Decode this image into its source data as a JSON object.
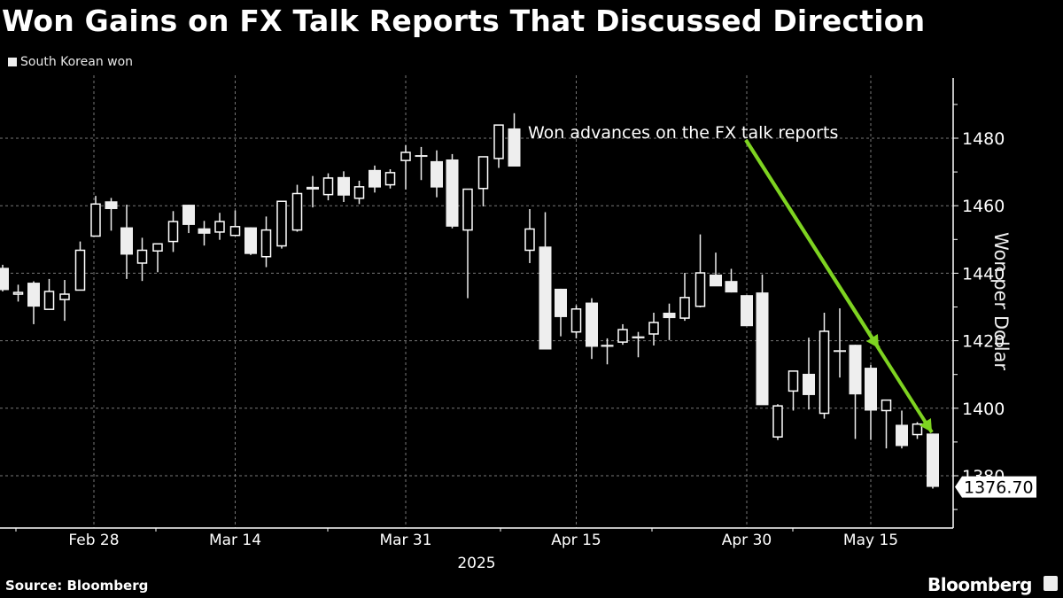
{
  "title": "Won Gains on FX Talk Reports That Discussed Direction",
  "legend": {
    "label": "South Korean won",
    "color": "#eeeeee"
  },
  "source": "Source: Bloomberg",
  "brand": "Bloomberg",
  "annotation": {
    "text": "Won advances on the FX talk reports",
    "arrow_color": "#7ed321"
  },
  "last_value_label": "1376.70",
  "chart_data": {
    "type": "candlestick",
    "title": "Won Gains on FX Talk Reports That Discussed Direction",
    "xlabel": "2025",
    "ylabel": "Won per Dollar",
    "ylim": [
      1365,
      1498
    ],
    "yticks": [
      1380,
      1400,
      1420,
      1440,
      1460,
      1480
    ],
    "xticks": [
      {
        "label": "Feb 28",
        "index": 6
      },
      {
        "label": "Mar 14",
        "index": 15
      },
      {
        "label": "Mar 31",
        "index": 26
      },
      {
        "label": "Apr 15",
        "index": 37
      },
      {
        "label": "Apr 30",
        "index": 48
      },
      {
        "label": "May 15",
        "index": 56
      }
    ],
    "legend": [
      "South Korean won"
    ],
    "grid": true,
    "last_value": 1376.7,
    "series": [
      {
        "name": "South Korean won",
        "ohlc": [
          [
            1441.6,
            1442.5,
            1434.6,
            1435.0
          ],
          [
            1433.8,
            1436.6,
            1431.6,
            1434.3
          ],
          [
            1437.2,
            1437.6,
            1424.9,
            1430.1
          ],
          [
            1429.3,
            1438.3,
            1429.3,
            1434.6
          ],
          [
            1432.2,
            1438.0,
            1425.9,
            1433.8
          ],
          [
            1435.0,
            1449.4,
            1435.0,
            1446.8
          ],
          [
            1451.0,
            1462.9,
            1451.0,
            1460.5
          ],
          [
            1461.3,
            1462.3,
            1452.6,
            1459.0
          ],
          [
            1453.6,
            1460.3,
            1438.3,
            1445.5
          ],
          [
            1443.0,
            1450.5,
            1437.7,
            1446.8
          ],
          [
            1446.6,
            1448.7,
            1440.3,
            1448.7
          ],
          [
            1449.4,
            1458.4,
            1446.3,
            1455.3
          ],
          [
            1460.3,
            1460.3,
            1451.9,
            1454.3
          ],
          [
            1453.3,
            1455.5,
            1448.2,
            1451.7
          ],
          [
            1452.2,
            1457.9,
            1449.9,
            1455.3
          ],
          [
            1451.2,
            1458.6,
            1451.2,
            1453.8
          ],
          [
            1453.6,
            1453.6,
            1445.4,
            1445.7
          ],
          [
            1444.9,
            1456.8,
            1441.8,
            1452.8
          ],
          [
            1448.1,
            1461.3,
            1447.3,
            1461.3
          ],
          [
            1452.8,
            1466.2,
            1452.3,
            1463.6
          ],
          [
            1465.6,
            1468.8,
            1459.5,
            1464.8
          ],
          [
            1463.3,
            1469.6,
            1461.6,
            1468.2
          ],
          [
            1468.5,
            1470.2,
            1461.1,
            1463.0
          ],
          [
            1462.2,
            1467.4,
            1460.5,
            1465.6
          ],
          [
            1470.6,
            1471.9,
            1463.9,
            1465.4
          ],
          [
            1466.2,
            1470.8,
            1465.1,
            1469.8
          ],
          [
            1473.4,
            1477.9,
            1464.8,
            1475.8
          ],
          [
            1475.0,
            1477.4,
            1467.6,
            1475.0
          ],
          [
            1473.2,
            1476.4,
            1462.5,
            1465.4
          ],
          [
            1473.7,
            1475.3,
            1453.3,
            1453.8
          ],
          [
            1452.8,
            1464.6,
            1432.6,
            1464.9
          ],
          [
            1465.1,
            1471.9,
            1459.8,
            1474.5
          ],
          [
            1474.0,
            1482.5,
            1471.2,
            1483.9
          ],
          [
            1482.9,
            1487.4,
            1471.9,
            1471.6
          ],
          [
            1446.8,
            1459.0,
            1443.0,
            1453.1
          ],
          [
            1447.9,
            1458.1,
            1418.2,
            1417.4
          ],
          [
            1435.4,
            1435.4,
            1421.3,
            1427.0
          ],
          [
            1422.6,
            1430.5,
            1420.7,
            1429.4
          ],
          [
            1431.3,
            1432.6,
            1414.6,
            1418.2
          ],
          [
            1418.8,
            1420.7,
            1413.0,
            1418.2
          ],
          [
            1419.6,
            1424.9,
            1418.8,
            1423.3
          ],
          [
            1421.3,
            1422.6,
            1415.1,
            1420.7
          ],
          [
            1422.0,
            1428.3,
            1418.6,
            1425.4
          ],
          [
            1428.3,
            1431.0,
            1420.2,
            1426.7
          ],
          [
            1426.7,
            1440.1,
            1425.9,
            1432.8
          ],
          [
            1430.2,
            1451.5,
            1429.9,
            1440.1
          ],
          [
            1439.6,
            1446.1,
            1437.2,
            1436.1
          ],
          [
            1437.7,
            1441.3,
            1434.3,
            1434.3
          ],
          [
            1433.5,
            1433.5,
            1428.1,
            1424.3
          ],
          [
            1434.3,
            1439.6,
            1405.5,
            1400.9
          ],
          [
            1391.5,
            1401.2,
            1390.6,
            1400.7
          ],
          [
            1405.1,
            1407.4,
            1399.3,
            1411.0
          ],
          [
            1410.2,
            1420.9,
            1399.6,
            1403.9
          ],
          [
            1398.5,
            1428.3,
            1396.9,
            1422.8
          ],
          [
            1417.2,
            1429.6,
            1409.1,
            1416.7
          ],
          [
            1418.8,
            1418.8,
            1390.9,
            1404.1
          ],
          [
            1412.0,
            1412.8,
            1390.6,
            1399.3
          ],
          [
            1399.3,
            1400.3,
            1388.1,
            1402.4
          ],
          [
            1395.1,
            1399.3,
            1388.1,
            1388.8
          ],
          [
            1392.2,
            1395.9,
            1390.9,
            1395.3
          ],
          [
            1392.5,
            1392.5,
            1376.2,
            1376.7
          ]
        ]
      }
    ]
  }
}
